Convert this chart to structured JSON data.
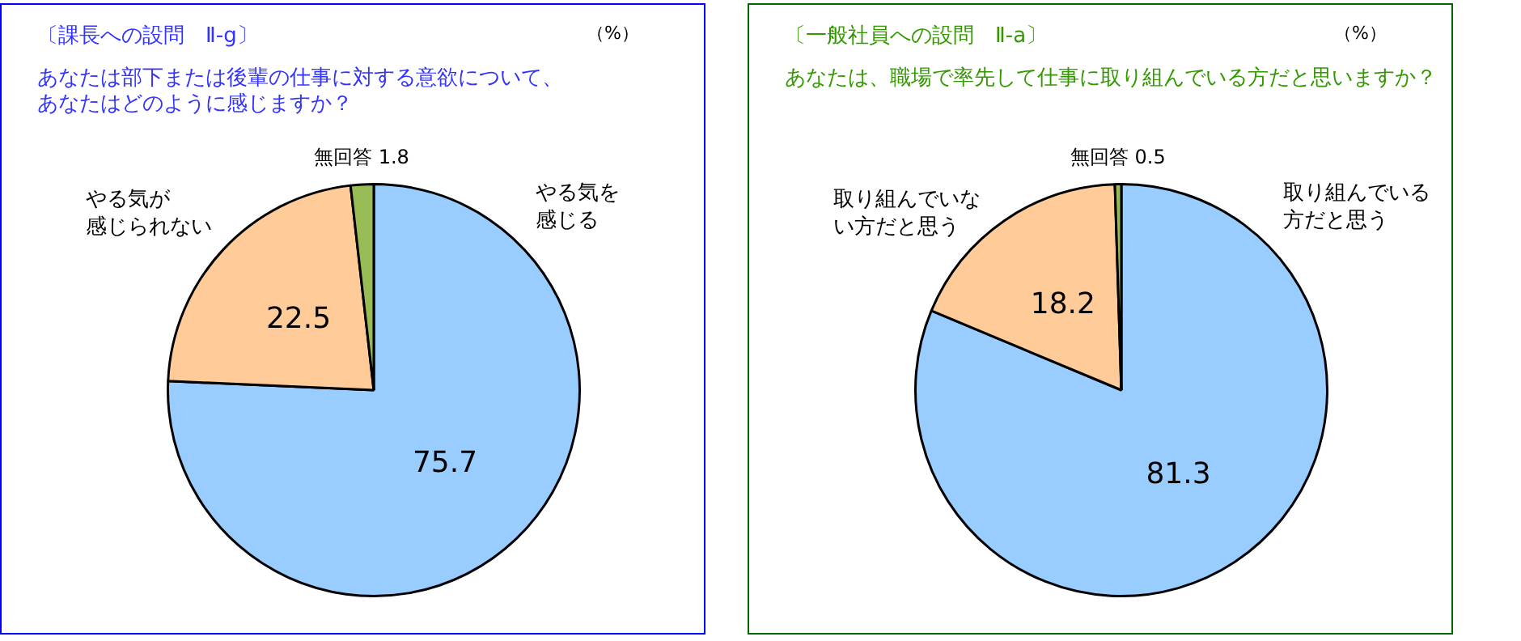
{
  "chart_data": [
    {
      "type": "pie",
      "title": "〔課長への設問　Ⅱ-g〕",
      "subtitle": "あなたは部下または後輩の仕事に対する意欲について、あなたはどのように感じますか？",
      "annotations": [
        "（%）"
      ],
      "categories": [
        "やる気を感じる",
        "やる気が感じられない",
        "無回答"
      ],
      "values": [
        75.7,
        22.5,
        1.8
      ],
      "colors": [
        "#99ccff",
        "#ffcc99",
        "#99bb55"
      ],
      "data_labels": true,
      "legend": false
    },
    {
      "type": "pie",
      "title": "〔一般社員への設問　Ⅱ-a〕",
      "subtitle": "あなたは、職場で率先して仕事に取り組んでいる方だと思いますか？",
      "annotations": [
        "（%）"
      ],
      "categories": [
        "取り組んでいる方だと思う",
        "取り組んでいない方だと思う",
        "無回答"
      ],
      "values": [
        81.3,
        18.2,
        0.5
      ],
      "colors": [
        "#99ccff",
        "#ffcc99",
        "#99bb55"
      ],
      "data_labels": true,
      "legend": false
    }
  ]
}
